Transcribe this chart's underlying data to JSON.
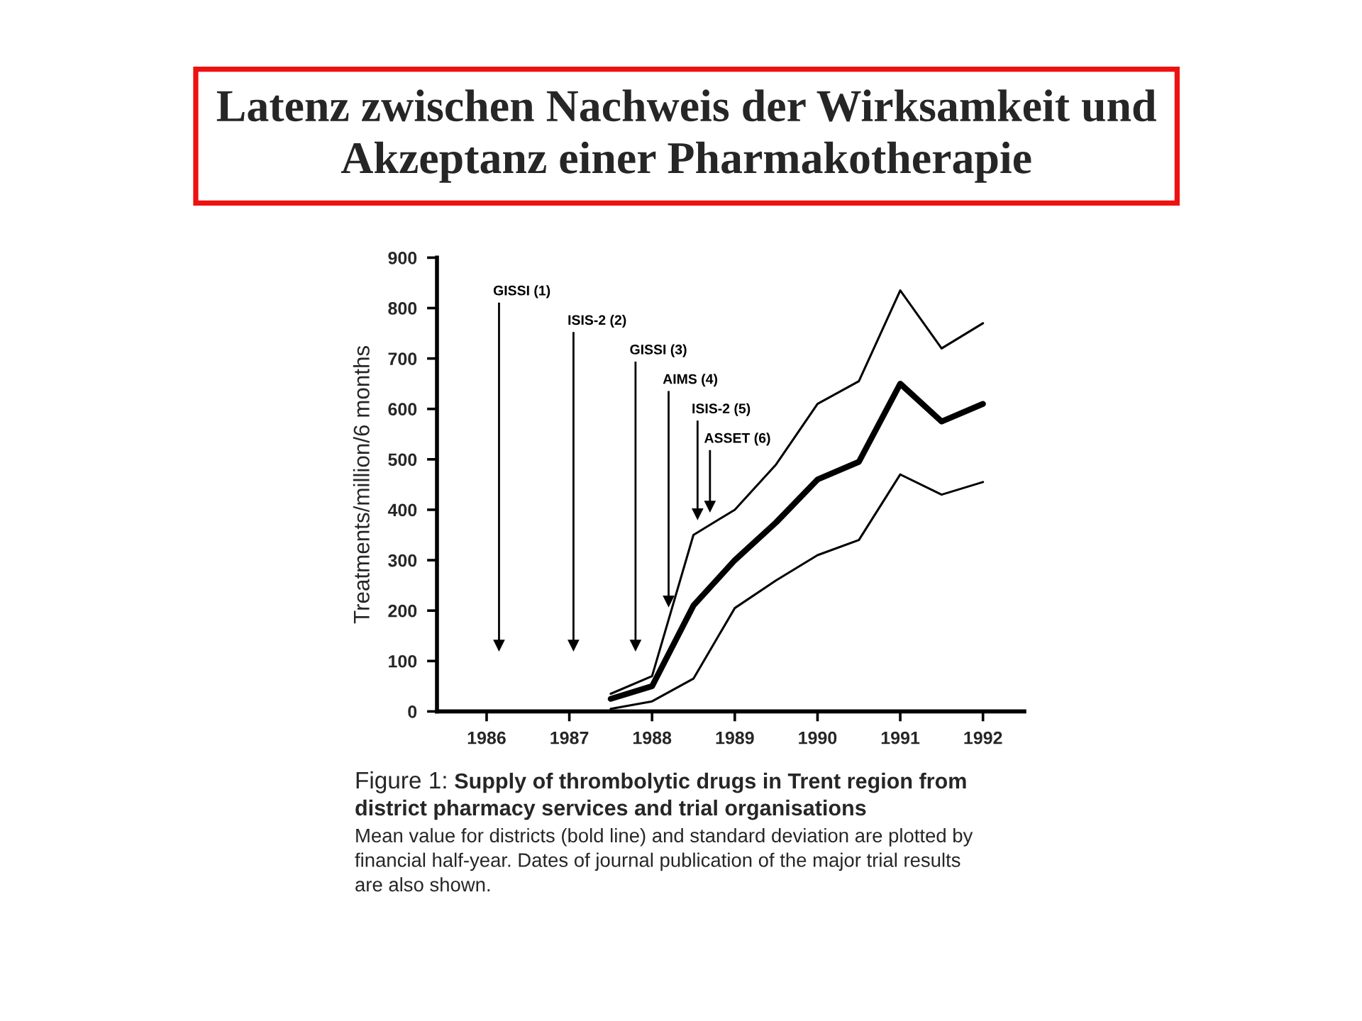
{
  "chart_data": {
    "type": "line",
    "title": "Latenz zwischen Nachweis der Wirksamkeit und Akzeptanz einer Pharmakotherapie",
    "ylabel": "Treatments/million/6 months",
    "x": [
      1987.5,
      1988,
      1988.5,
      1989,
      1989.5,
      1990,
      1990.5,
      1991,
      1991.5,
      1992
    ],
    "series": [
      {
        "color": "#000000",
        "values": [
          25,
          50,
          210,
          300,
          375,
          460,
          495,
          650,
          575,
          610
        ]
      },
      {
        "color": "#000000",
        "values": [
          35,
          70,
          350,
          400,
          490,
          610,
          655,
          835,
          720,
          770
        ]
      },
      {
        "color": "#000000",
        "values": [
          5,
          20,
          65,
          205,
          260,
          310,
          340,
          470,
          430,
          455
        ]
      }
    ],
    "xlim": [
      1985.4,
      1992.5
    ],
    "xticks": [
      1986,
      1987,
      1988,
      1989,
      1990,
      1991,
      1992
    ],
    "ylim": [
      0,
      900
    ],
    "yticks": [
      0,
      100,
      200,
      300,
      400,
      500,
      600,
      700,
      800,
      900
    ],
    "ref_lines": [
      {
        "axis": "x",
        "value": 1986.15,
        "label": "GISSI (1)"
      },
      {
        "axis": "x",
        "value": 1987.05,
        "label": "ISIS-2 (2)"
      },
      {
        "axis": "x",
        "value": 1987.8,
        "label": "GISSI (3)"
      },
      {
        "axis": "x",
        "value": 1988.2,
        "label": "AIMS (4)"
      },
      {
        "axis": "x",
        "value": 1988.55,
        "label": "ISIS-2 (5)"
      },
      {
        "axis": "x",
        "value": 1988.7,
        "label": "ASSET (6)"
      }
    ],
    "annotations": [
      "Figure 1:",
      "Supply of thrombolytic drugs in Trent region from district pharmacy services and trial organisations",
      "Mean value for districts (bold line) and standard deviation are plotted by financial half-year. Dates of journal publication of the major trial results are also shown."
    ]
  }
}
